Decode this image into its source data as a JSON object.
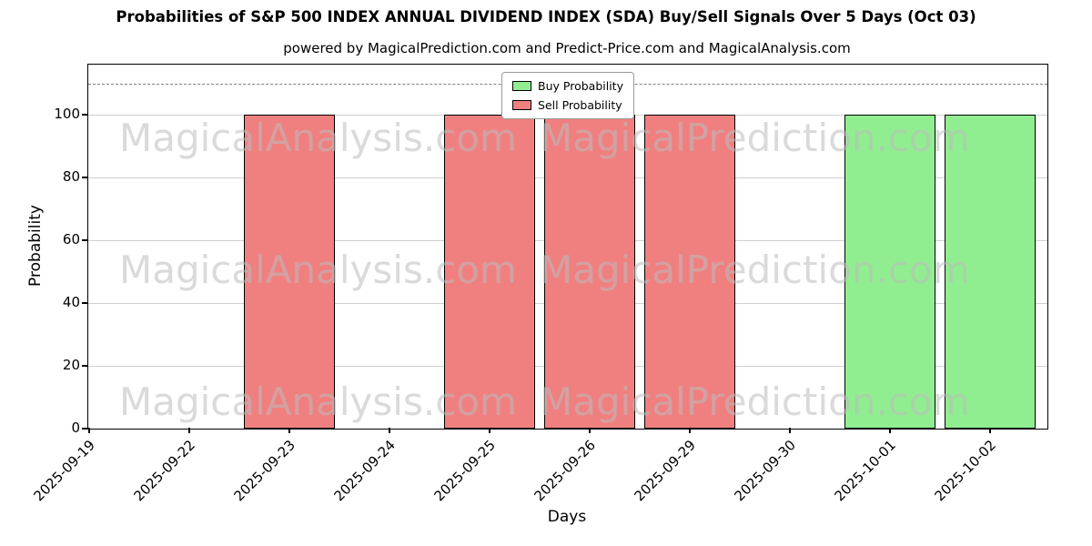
{
  "chart_data": {
    "type": "bar",
    "title": "Probabilities of S&P 500 INDEX ANNUAL DIVIDEND INDEX (SDA) Buy/Sell Signals Over 5 Days (Oct 03)",
    "subtitle": "powered by MagicalPrediction.com and Predict-Price.com and MagicalAnalysis.com",
    "xlabel": "Days",
    "ylabel": "Probability",
    "categories": [
      "2025-09-19",
      "2025-09-22",
      "2025-09-23",
      "2025-09-24",
      "2025-09-25",
      "2025-09-26",
      "2025-09-29",
      "2025-09-30",
      "2025-10-01",
      "2025-10-02"
    ],
    "series": [
      {
        "name": "Buy Probability",
        "color": "#90ee90",
        "values": [
          0,
          0,
          0,
          0,
          0,
          0,
          0,
          0,
          100,
          100
        ]
      },
      {
        "name": "Sell Probability",
        "color": "#f08080",
        "values": [
          0,
          0,
          100,
          0,
          100,
          100,
          100,
          0,
          0,
          0
        ]
      }
    ],
    "ylim": [
      0,
      116
    ],
    "yticks": [
      0,
      20,
      40,
      60,
      80,
      100
    ],
    "dashed_line_y": 110,
    "grid": true,
    "legend_position": "upper center",
    "watermarks": [
      "MagicalAnalysis.com",
      "MagicalPrediction.com"
    ]
  }
}
